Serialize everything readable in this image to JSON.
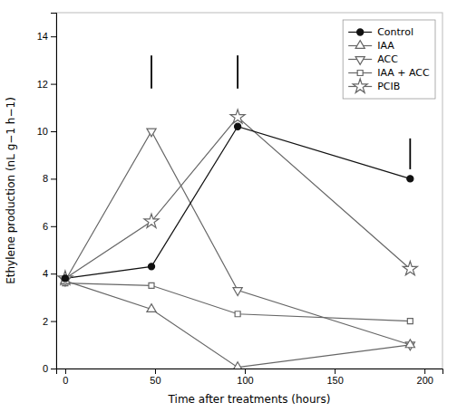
{
  "chart_data": {
    "type": "line",
    "xlabel": "Time after treatments (hours)",
    "ylabel": "Ethylene production (nL g−1 h−1)",
    "x": [
      0,
      48,
      96,
      192
    ],
    "series": [
      {
        "name": "Control",
        "color": "#111111",
        "marker": "circle",
        "values": [
          3.8,
          4.3,
          10.2,
          8.0
        ]
      },
      {
        "name": "IAA",
        "color": "#666666",
        "marker": "triangle-up",
        "values": [
          3.7,
          2.5,
          0.05,
          1.0
        ]
      },
      {
        "name": "ACC",
        "color": "#666666",
        "marker": "triangle-down",
        "values": [
          3.7,
          10.0,
          3.3,
          1.0
        ]
      },
      {
        "name": "IAA + ACC",
        "color": "#666666",
        "marker": "square",
        "values": [
          3.6,
          3.5,
          2.3,
          2.0
        ]
      },
      {
        "name": "PCIB",
        "color": "#666666",
        "marker": "star",
        "values": [
          3.8,
          6.2,
          10.6,
          4.2
        ]
      }
    ],
    "lsd_bars": [
      {
        "x": 48,
        "y_bottom": 11.8,
        "y_top": 13.2
      },
      {
        "x": 96,
        "y_bottom": 11.8,
        "y_top": 13.2
      },
      {
        "x": 192,
        "y_bottom": 8.4,
        "y_top": 9.7
      }
    ],
    "xlim": [
      -5,
      210
    ],
    "ylim": [
      0,
      15
    ],
    "xticks": [
      0,
      50,
      100,
      150,
      200
    ],
    "yticks": [
      0,
      2,
      4,
      6,
      8,
      10,
      12,
      14
    ],
    "legend": "upper right"
  }
}
